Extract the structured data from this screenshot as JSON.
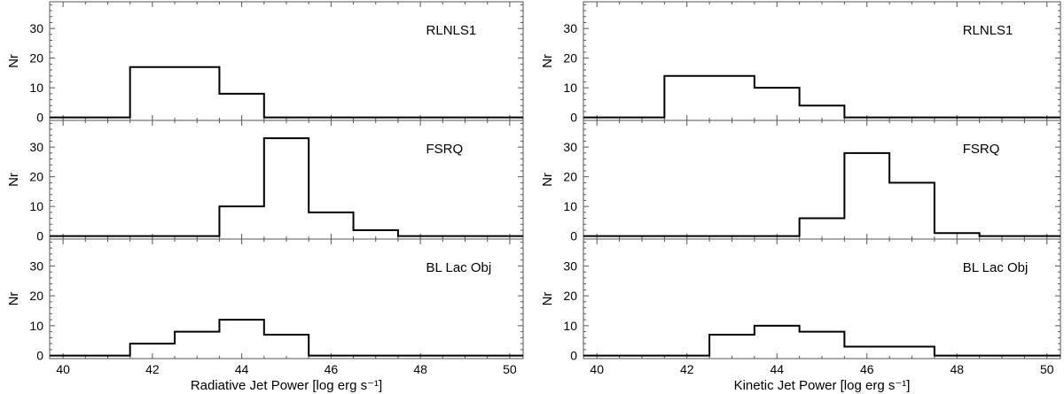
{
  "chart_data": [
    {
      "type": "histogram",
      "xlabel": "Radiative Jet Power [log erg s⁻¹]",
      "ylabel": "Nr",
      "xlim": [
        39.7,
        50.3
      ],
      "ylim": [
        -1,
        39
      ],
      "xticks": [
        "40",
        "42",
        "44",
        "46",
        "48",
        "50"
      ],
      "yticks": [
        "0",
        "10",
        "20",
        "30"
      ],
      "grid": false,
      "panels": [
        {
          "label": "RLNLS1",
          "edges": [
            39.5,
            41.5,
            43.5,
            44.5,
            50.5
          ],
          "values": [
            0,
            17,
            8,
            0
          ]
        },
        {
          "label": "FSRQ",
          "edges": [
            39.5,
            43.5,
            44.5,
            45.5,
            46.5,
            47.5,
            50.5
          ],
          "values": [
            0,
            10,
            33,
            8,
            2,
            0
          ]
        },
        {
          "label": "BL Lac Obj",
          "edges": [
            39.5,
            41.5,
            42.5,
            43.5,
            44.5,
            45.5,
            50.5
          ],
          "values": [
            0,
            4,
            8,
            12,
            7,
            0
          ]
        }
      ]
    },
    {
      "type": "histogram",
      "xlabel": "Kinetic Jet Power [log erg s⁻¹]",
      "ylabel": "Nr",
      "xlim": [
        39.7,
        50.3
      ],
      "ylim": [
        -1,
        39
      ],
      "xticks": [
        "40",
        "42",
        "44",
        "46",
        "48",
        "50"
      ],
      "yticks": [
        "0",
        "10",
        "20",
        "30"
      ],
      "grid": false,
      "panels": [
        {
          "label": "RLNLS1",
          "edges": [
            39.5,
            41.5,
            43.5,
            44.5,
            45.5,
            50.5
          ],
          "values": [
            0,
            14,
            10,
            4,
            0
          ]
        },
        {
          "label": "FSRQ",
          "edges": [
            39.5,
            44.5,
            45.5,
            46.5,
            47.5,
            48.5,
            50.5
          ],
          "values": [
            0,
            6,
            28,
            18,
            1,
            0
          ]
        },
        {
          "label": "BL Lac Obj",
          "edges": [
            39.5,
            42.5,
            43.5,
            44.5,
            45.5,
            47.5,
            50.5
          ],
          "values": [
            0,
            7,
            10,
            8,
            3,
            0
          ]
        }
      ]
    }
  ]
}
